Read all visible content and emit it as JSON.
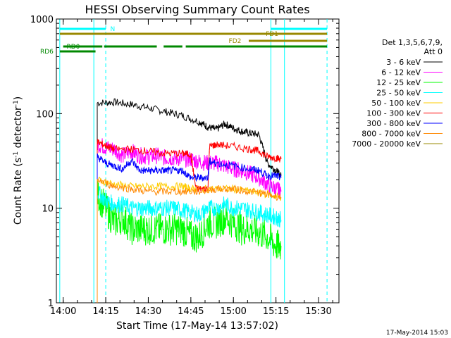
{
  "chart_data": {
    "type": "line",
    "title": "HESSI Observing Summary Count Rates",
    "xlabel": "Start Time (17-May-14 13:57:02)",
    "ylabel_prefix": "Count Rate (s",
    "ylabel_sup1": "-1",
    "ylabel_mid": " detector",
    "ylabel_sup2": "-1",
    "ylabel_suffix": ")",
    "yscale": "log",
    "ylim": [
      1,
      1000
    ],
    "xlim_minutes": [
      13.96,
      15.62
    ],
    "x_ticks": [
      {
        "label": "14:00",
        "t": 14.0
      },
      {
        "label": "14:15",
        "t": 14.25
      },
      {
        "label": "14:30",
        "t": 14.5
      },
      {
        "label": "14:45",
        "t": 14.75
      },
      {
        "label": "15:00",
        "t": 15.0
      },
      {
        "label": "15:15",
        "t": 15.25
      },
      {
        "label": "15:30",
        "t": 15.5
      }
    ],
    "y_ticks": [
      {
        "label": "1",
        "v": 1
      },
      {
        "label": "10",
        "v": 10
      },
      {
        "label": "100",
        "v": 100
      },
      {
        "label": "1000",
        "v": 1000
      }
    ],
    "legend_title_1": "Det 1,3,5,6,7,9,",
    "legend_title_2": "Att 0",
    "legend_position": "right",
    "series": [
      {
        "name": "3 - 6 keV",
        "color": "#000000",
        "points": [
          [
            14.2,
            130
          ],
          [
            14.3,
            132
          ],
          [
            14.4,
            125
          ],
          [
            14.5,
            115
          ],
          [
            14.6,
            105
          ],
          [
            14.7,
            95
          ],
          [
            14.8,
            82
          ],
          [
            14.85,
            72
          ],
          [
            14.9,
            68
          ],
          [
            14.95,
            78
          ],
          [
            15.0,
            70
          ],
          [
            15.05,
            65
          ],
          [
            15.1,
            62
          ],
          [
            15.15,
            60
          ],
          [
            15.2,
            30
          ],
          [
            15.25,
            25
          ],
          [
            15.28,
            22
          ]
        ]
      },
      {
        "name": "6 - 12 keV",
        "color": "#ff00ff",
        "points": [
          [
            14.2,
            48
          ],
          [
            14.25,
            44
          ],
          [
            14.3,
            42
          ],
          [
            14.35,
            36
          ],
          [
            14.4,
            40
          ],
          [
            14.45,
            36
          ],
          [
            14.5,
            35
          ],
          [
            14.55,
            36
          ],
          [
            14.6,
            34
          ],
          [
            14.65,
            34
          ],
          [
            14.7,
            33
          ],
          [
            14.75,
            33
          ],
          [
            14.8,
            31
          ],
          [
            14.85,
            30
          ],
          [
            14.9,
            30
          ],
          [
            14.95,
            28
          ],
          [
            15.0,
            26
          ],
          [
            15.05,
            25
          ],
          [
            15.1,
            23
          ],
          [
            15.15,
            21
          ],
          [
            15.2,
            18
          ],
          [
            15.25,
            16
          ],
          [
            15.28,
            15
          ]
        ]
      },
      {
        "name": "12 - 25 keV",
        "color": "#00ff00",
        "points": [
          [
            14.2,
            14
          ],
          [
            14.25,
            10
          ],
          [
            14.3,
            7
          ],
          [
            14.35,
            8
          ],
          [
            14.4,
            6
          ],
          [
            14.45,
            6
          ],
          [
            14.5,
            6
          ],
          [
            14.55,
            6
          ],
          [
            14.6,
            6
          ],
          [
            14.65,
            6
          ],
          [
            14.7,
            6
          ],
          [
            14.75,
            5
          ],
          [
            14.8,
            5
          ],
          [
            14.85,
            7
          ],
          [
            14.9,
            7
          ],
          [
            14.95,
            8
          ],
          [
            15.0,
            7
          ],
          [
            15.05,
            6
          ],
          [
            15.1,
            6
          ],
          [
            15.15,
            5.5
          ],
          [
            15.2,
            5
          ],
          [
            15.25,
            4
          ],
          [
            15.28,
            4
          ]
        ]
      },
      {
        "name": "25 - 50 keV",
        "color": "#00ffff",
        "points": [
          [
            14.2,
            15
          ],
          [
            14.25,
            12
          ],
          [
            14.3,
            11
          ],
          [
            14.35,
            11
          ],
          [
            14.4,
            10
          ],
          [
            14.45,
            10
          ],
          [
            14.5,
            10
          ],
          [
            14.55,
            10
          ],
          [
            14.6,
            10
          ],
          [
            14.65,
            10
          ],
          [
            14.7,
            9.5
          ],
          [
            14.75,
            9
          ],
          [
            14.8,
            8.5
          ],
          [
            14.85,
            10
          ],
          [
            14.9,
            10
          ],
          [
            14.95,
            11
          ],
          [
            15.0,
            10
          ],
          [
            15.05,
            10
          ],
          [
            15.1,
            9.5
          ],
          [
            15.15,
            9
          ],
          [
            15.2,
            8.5
          ],
          [
            15.25,
            8
          ],
          [
            15.28,
            7.5
          ]
        ]
      },
      {
        "name": "50 - 100 keV",
        "color": "#ffcc00",
        "points": [
          [
            14.2,
            20
          ],
          [
            14.3,
            18
          ],
          [
            14.4,
            17
          ],
          [
            14.5,
            17
          ],
          [
            14.6,
            17
          ],
          [
            14.7,
            17
          ],
          [
            14.75,
            16
          ],
          [
            14.8,
            16
          ],
          [
            14.9,
            16
          ],
          [
            15.0,
            16
          ],
          [
            15.1,
            15
          ],
          [
            15.2,
            14
          ],
          [
            15.28,
            13
          ]
        ]
      },
      {
        "name": "100 - 300 keV",
        "color": "#ff0000",
        "points": [
          [
            14.2,
            50
          ],
          [
            14.25,
            46
          ],
          [
            14.3,
            42
          ],
          [
            14.4,
            42
          ],
          [
            14.5,
            40
          ],
          [
            14.6,
            38
          ],
          [
            14.7,
            38
          ],
          [
            14.75,
            37
          ],
          [
            14.78,
            16
          ],
          [
            14.85,
            16
          ],
          [
            14.86,
            45
          ],
          [
            14.9,
            47
          ],
          [
            15.0,
            45
          ],
          [
            15.1,
            42
          ],
          [
            15.15,
            40
          ],
          [
            15.2,
            35
          ],
          [
            15.25,
            34
          ],
          [
            15.28,
            33
          ]
        ]
      },
      {
        "name": "300 - 800 keV",
        "color": "#0000ff",
        "points": [
          [
            14.2,
            35
          ],
          [
            14.25,
            30
          ],
          [
            14.3,
            28
          ],
          [
            14.35,
            26
          ],
          [
            14.4,
            32
          ],
          [
            14.45,
            25
          ],
          [
            14.5,
            25
          ],
          [
            14.55,
            25
          ],
          [
            14.6,
            25
          ],
          [
            14.65,
            25
          ],
          [
            14.7,
            25
          ],
          [
            14.75,
            21
          ],
          [
            14.8,
            21
          ],
          [
            14.85,
            21
          ],
          [
            14.86,
            31
          ],
          [
            14.9,
            30
          ],
          [
            15.0,
            28
          ],
          [
            15.1,
            26
          ],
          [
            15.15,
            25
          ],
          [
            15.2,
            22
          ],
          [
            15.25,
            22
          ],
          [
            15.28,
            21
          ]
        ]
      },
      {
        "name": "800 - 7000 keV",
        "color": "#ff8800",
        "points": [
          [
            14.2,
            20
          ],
          [
            14.3,
            17
          ],
          [
            14.4,
            16
          ],
          [
            14.5,
            15
          ],
          [
            14.6,
            15
          ],
          [
            14.7,
            15
          ],
          [
            14.8,
            15
          ],
          [
            14.9,
            16
          ],
          [
            15.0,
            16
          ],
          [
            15.1,
            15
          ],
          [
            15.2,
            14
          ],
          [
            15.28,
            13
          ]
        ]
      },
      {
        "name": "7000 - 20000 keV",
        "color": "#998800",
        "points": []
      }
    ],
    "state_bars": [
      {
        "label": "N",
        "color": "#00ffff",
        "segments": [
          [
            13.98,
            14.25
          ],
          [
            15.22,
            15.55
          ]
        ]
      },
      {
        "label": "FD1",
        "color": "#998800",
        "segments": [
          [
            13.98,
            15.55
          ]
        ]
      },
      {
        "label": "FD2",
        "color": "#998800",
        "segments": [
          [
            15.09,
            15.55
          ]
        ]
      },
      {
        "label": "RD0",
        "color": "#008800",
        "segments": [
          [
            14.0,
            14.23
          ],
          [
            14.24,
            14.55
          ],
          [
            14.59,
            14.7
          ],
          [
            14.72,
            15.55
          ]
        ]
      },
      {
        "label": "RD6",
        "color": "#008800",
        "segments": [
          [
            13.98,
            14.19
          ]
        ]
      }
    ],
    "vertical_markers": [
      {
        "t": 13.98,
        "color": "#00ffff",
        "style": "solid"
      },
      {
        "t": 14.18,
        "color": "#00ffff",
        "style": "solid"
      },
      {
        "t": 14.25,
        "color": "#00ffff",
        "style": "dashed"
      },
      {
        "t": 15.22,
        "color": "#00ffff",
        "style": "solid"
      },
      {
        "t": 15.3,
        "color": "#00ffff",
        "style": "solid"
      },
      {
        "t": 15.55,
        "color": "#00ffff",
        "style": "dashed"
      }
    ]
  },
  "footer": {
    "timestamp": "17-May-2014 15:03"
  }
}
